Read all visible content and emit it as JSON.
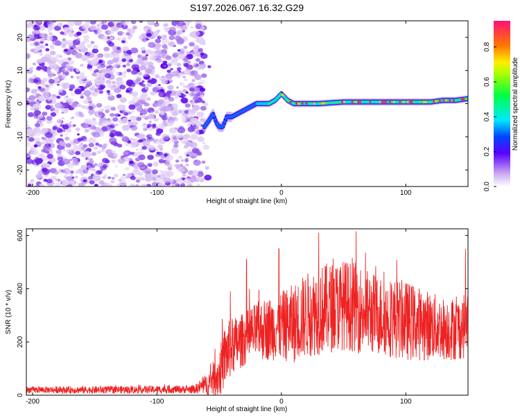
{
  "chart_data": [
    {
      "type": "heatmap",
      "title": "S197.2026.067.16.32.G29",
      "xlabel": "Height of straight line (km)",
      "ylabel": "Frequency (Hz)",
      "xlim": [
        -205,
        150
      ],
      "ylim": [
        -25,
        25
      ],
      "xticks": [
        -200,
        -100,
        0,
        100
      ],
      "yticks": [
        -20,
        -10,
        0,
        10,
        20
      ],
      "noise_region_x": [
        -205,
        -62
      ],
      "signal_trace": {
        "x": [
          -62,
          -58,
          -55,
          -52,
          -50,
          -47,
          -44,
          -40,
          -35,
          -30,
          -25,
          -20,
          -15,
          -10,
          -5,
          0,
          5,
          10,
          20,
          30,
          50,
          80,
          100,
          120,
          130,
          140,
          150
        ],
        "y": [
          -7,
          -5,
          -3,
          -6,
          -7,
          -7,
          -4,
          -4,
          -3,
          -2,
          -1,
          0,
          0,
          0,
          1,
          3,
          1,
          0,
          0,
          0,
          0.5,
          0.5,
          0.5,
          0.5,
          1,
          1,
          1.5
        ]
      },
      "colorbar": {
        "label": "Normalized spectral amplitude",
        "range": [
          0.0,
          0.95
        ],
        "ticks": [
          "0.0",
          "0.2",
          "0.4",
          "0.6",
          "0.8"
        ]
      }
    },
    {
      "type": "line",
      "xlabel": "Height of straight line (km)",
      "ylabel": "SNR (10 * v/v)",
      "xlim": [
        -205,
        150
      ],
      "ylim": [
        0,
        625
      ],
      "xticks": [
        -200,
        -100,
        0,
        100
      ],
      "yticks": [
        0,
        200,
        400,
        600
      ],
      "color": "#ee2222",
      "envelope": {
        "x": [
          -205,
          -150,
          -70,
          -60,
          -50,
          -45,
          -40,
          -30,
          -20,
          -10,
          0,
          10,
          20,
          30,
          40,
          50,
          60,
          70,
          80,
          90,
          100,
          110,
          120,
          130,
          140,
          150
        ],
        "mean": [
          20,
          20,
          22,
          40,
          80,
          150,
          180,
          210,
          240,
          250,
          260,
          270,
          300,
          320,
          330,
          340,
          330,
          310,
          300,
          290,
          280,
          270,
          260,
          250,
          250,
          260
        ],
        "amp": [
          12,
          14,
          15,
          40,
          90,
          120,
          110,
          100,
          110,
          120,
          130,
          150,
          160,
          170,
          170,
          170,
          170,
          160,
          150,
          150,
          150,
          140,
          130,
          120,
          120,
          120
        ]
      },
      "peaks": [
        {
          "x": -41,
          "y": 390
        },
        {
          "x": -28,
          "y": 510
        },
        {
          "x": 30,
          "y": 610
        },
        {
          "x": 60,
          "y": 615
        },
        {
          "x": -2,
          "y": 550
        },
        {
          "x": 148,
          "y": 550
        }
      ]
    }
  ]
}
